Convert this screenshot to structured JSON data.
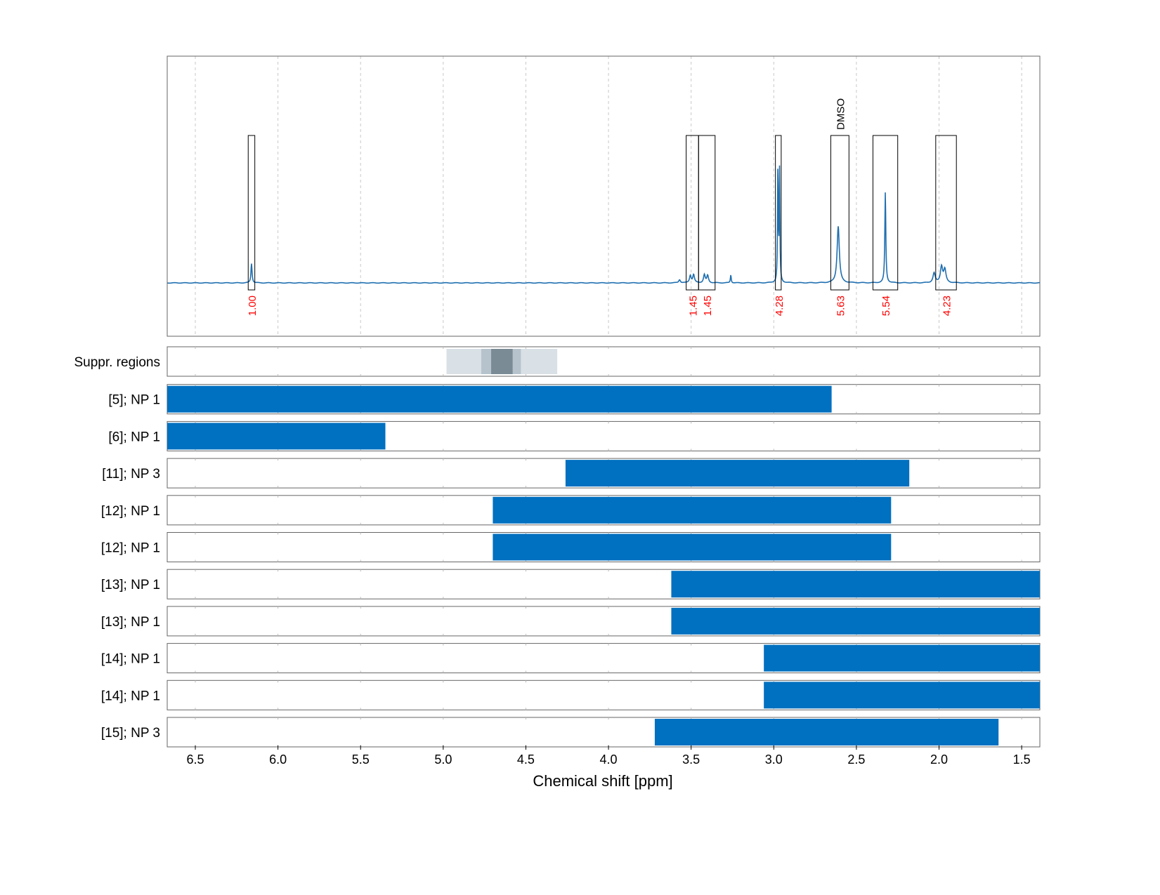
{
  "chart_data": {
    "type": "line",
    "xlabel": "Chemical shift [ppm]",
    "xlim": [
      6.67,
      1.39
    ],
    "x_ticks": [
      {
        "value": 6.5,
        "label": "6.5"
      },
      {
        "value": 6.0,
        "label": "6.0"
      },
      {
        "value": 5.5,
        "label": "5.5"
      },
      {
        "value": 5.0,
        "label": "5.0"
      },
      {
        "value": 4.5,
        "label": "4.5"
      },
      {
        "value": 4.0,
        "label": "4.0"
      },
      {
        "value": 3.5,
        "label": "3.5"
      },
      {
        "value": 3.0,
        "label": "3.0"
      },
      {
        "value": 2.5,
        "label": "2.5"
      },
      {
        "value": 2.0,
        "label": "2.0"
      },
      {
        "value": 1.5,
        "label": "1.5"
      }
    ],
    "grid": true,
    "colors": {
      "spectrum": "#1f6fb0",
      "bar": "#0070c0",
      "integral_label": "#ff0000",
      "suppression_light": "#d9e0e6",
      "suppression_mid": "#b6c3cc",
      "suppression_dark": "#7a8b96"
    },
    "spectrum": {
      "baseline": 0,
      "ylim": [
        -0.12,
        1.0
      ],
      "peaks": [
        {
          "ppm": 6.16,
          "height": 0.12,
          "width": 0.004
        },
        {
          "ppm": 3.57,
          "height": 0.02,
          "width": 0.006
        },
        {
          "ppm": 3.505,
          "height": 0.045,
          "width": 0.006
        },
        {
          "ppm": 3.485,
          "height": 0.05,
          "width": 0.006
        },
        {
          "ppm": 3.42,
          "height": 0.05,
          "width": 0.006
        },
        {
          "ppm": 3.4,
          "height": 0.045,
          "width": 0.006
        },
        {
          "ppm": 3.26,
          "height": 0.05,
          "width": 0.003
        },
        {
          "ppm": 2.975,
          "height": 0.72,
          "width": 0.0025
        },
        {
          "ppm": 2.965,
          "height": 0.68,
          "width": 0.0025
        },
        {
          "ppm": 2.61,
          "height": 0.35,
          "width": 0.008
        },
        {
          "ppm": 2.325,
          "height": 0.56,
          "width": 0.0035
        },
        {
          "ppm": 2.03,
          "height": 0.06,
          "width": 0.008
        },
        {
          "ppm": 1.985,
          "height": 0.1,
          "width": 0.008
        },
        {
          "ppm": 1.965,
          "height": 0.08,
          "width": 0.008
        }
      ]
    },
    "integration_regions": [
      {
        "from": 6.18,
        "to": 6.14,
        "label": "1.00"
      },
      {
        "from": 3.53,
        "to": 3.455,
        "label": "1.45"
      },
      {
        "from": 3.455,
        "to": 3.355,
        "label": "1.45"
      },
      {
        "from": 2.99,
        "to": 2.955,
        "label": "4.28"
      },
      {
        "from": 2.655,
        "to": 2.545,
        "label": "5.63"
      },
      {
        "from": 2.4,
        "to": 2.25,
        "label": "5.54"
      },
      {
        "from": 2.02,
        "to": 1.895,
        "label": "4.23"
      }
    ],
    "peak_annotations": [
      {
        "ppm": 2.6,
        "label": "DMSO"
      }
    ],
    "suppression": {
      "label": "Suppr. regions",
      "bands": [
        {
          "from": 4.98,
          "to": 4.31,
          "level": "light"
        },
        {
          "from": 4.77,
          "to": 4.53,
          "level": "mid"
        },
        {
          "from": 4.71,
          "to": 4.58,
          "level": "dark"
        }
      ]
    },
    "ranges": [
      {
        "label": "[5]; NP 1",
        "from": 6.67,
        "to": 2.65
      },
      {
        "label": "[6]; NP 1",
        "from": 6.67,
        "to": 5.35
      },
      {
        "label": "[11]; NP 3",
        "from": 4.26,
        "to": 2.18
      },
      {
        "label": "[12]; NP 1",
        "from": 4.7,
        "to": 2.29
      },
      {
        "label": "[12]; NP 1",
        "from": 4.7,
        "to": 2.29
      },
      {
        "label": "[13]; NP 1",
        "from": 3.62,
        "to": 1.39
      },
      {
        "label": "[13]; NP 1",
        "from": 3.62,
        "to": 1.39
      },
      {
        "label": "[14]; NP 1",
        "from": 3.06,
        "to": 1.39
      },
      {
        "label": "[14]; NP 1",
        "from": 3.06,
        "to": 1.39
      },
      {
        "label": "[15]; NP 3",
        "from": 3.72,
        "to": 1.64
      }
    ]
  }
}
